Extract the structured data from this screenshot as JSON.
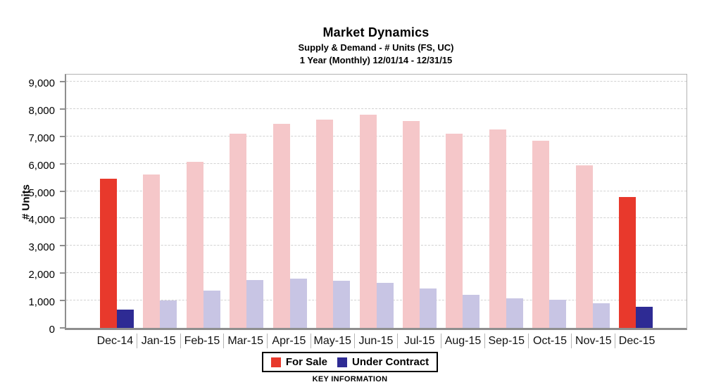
{
  "header": {
    "title": "Market Dynamics",
    "subtitle": "Supply & Demand - # Units (FS, UC)",
    "period": "1 Year (Monthly) 12/01/14 - 12/31/15"
  },
  "y_axis": {
    "label": "# Units",
    "ticks": [
      {
        "value": 0,
        "label": "0"
      },
      {
        "value": 1000,
        "label": "1,000"
      },
      {
        "value": 2000,
        "label": "2,000"
      },
      {
        "value": 3000,
        "label": "3,000"
      },
      {
        "value": 4000,
        "label": "4,000"
      },
      {
        "value": 5000,
        "label": "5,000"
      },
      {
        "value": 6000,
        "label": "6,000"
      },
      {
        "value": 7000,
        "label": "7,000"
      },
      {
        "value": 8000,
        "label": "8,000"
      },
      {
        "value": 9000,
        "label": "9,000"
      }
    ]
  },
  "legend": {
    "items": [
      {
        "label": "For Sale",
        "color": "#e8392c"
      },
      {
        "label": "Under Contract",
        "color": "#2e2b94"
      }
    ],
    "footer": "KEY INFORMATION"
  },
  "colors": {
    "for_sale_highlight": "#e8392c",
    "for_sale_pale": "#f5c7c9",
    "under_contract_highlight": "#2e2b94",
    "under_contract_pale": "#c8c5e4"
  },
  "chart_data": {
    "type": "bar",
    "title": "Market Dynamics",
    "subtitle": "Supply & Demand - # Units (FS, UC)",
    "period": "1 Year (Monthly) 12/01/14 - 12/31/15",
    "xlabel": "",
    "ylabel": "# Units",
    "ylim": [
      0,
      9000
    ],
    "grid": "horizontal-dashed",
    "legend_position": "bottom",
    "categories": [
      "Dec-14",
      "Jan-15",
      "Feb-15",
      "Mar-15",
      "Apr-15",
      "May-15",
      "Jun-15",
      "Jul-15",
      "Aug-15",
      "Sep-15",
      "Oct-15",
      "Nov-15",
      "Dec-15"
    ],
    "series": [
      {
        "name": "For Sale",
        "values": [
          5450,
          5600,
          6080,
          7100,
          7450,
          7600,
          7780,
          7550,
          7100,
          7250,
          6840,
          5950,
          4780
        ]
      },
      {
        "name": "Under Contract",
        "values": [
          670,
          1000,
          1370,
          1750,
          1800,
          1730,
          1650,
          1440,
          1220,
          1070,
          1030,
          900,
          760
        ]
      }
    ],
    "highlighted_categories": [
      "Dec-14",
      "Dec-15"
    ]
  }
}
